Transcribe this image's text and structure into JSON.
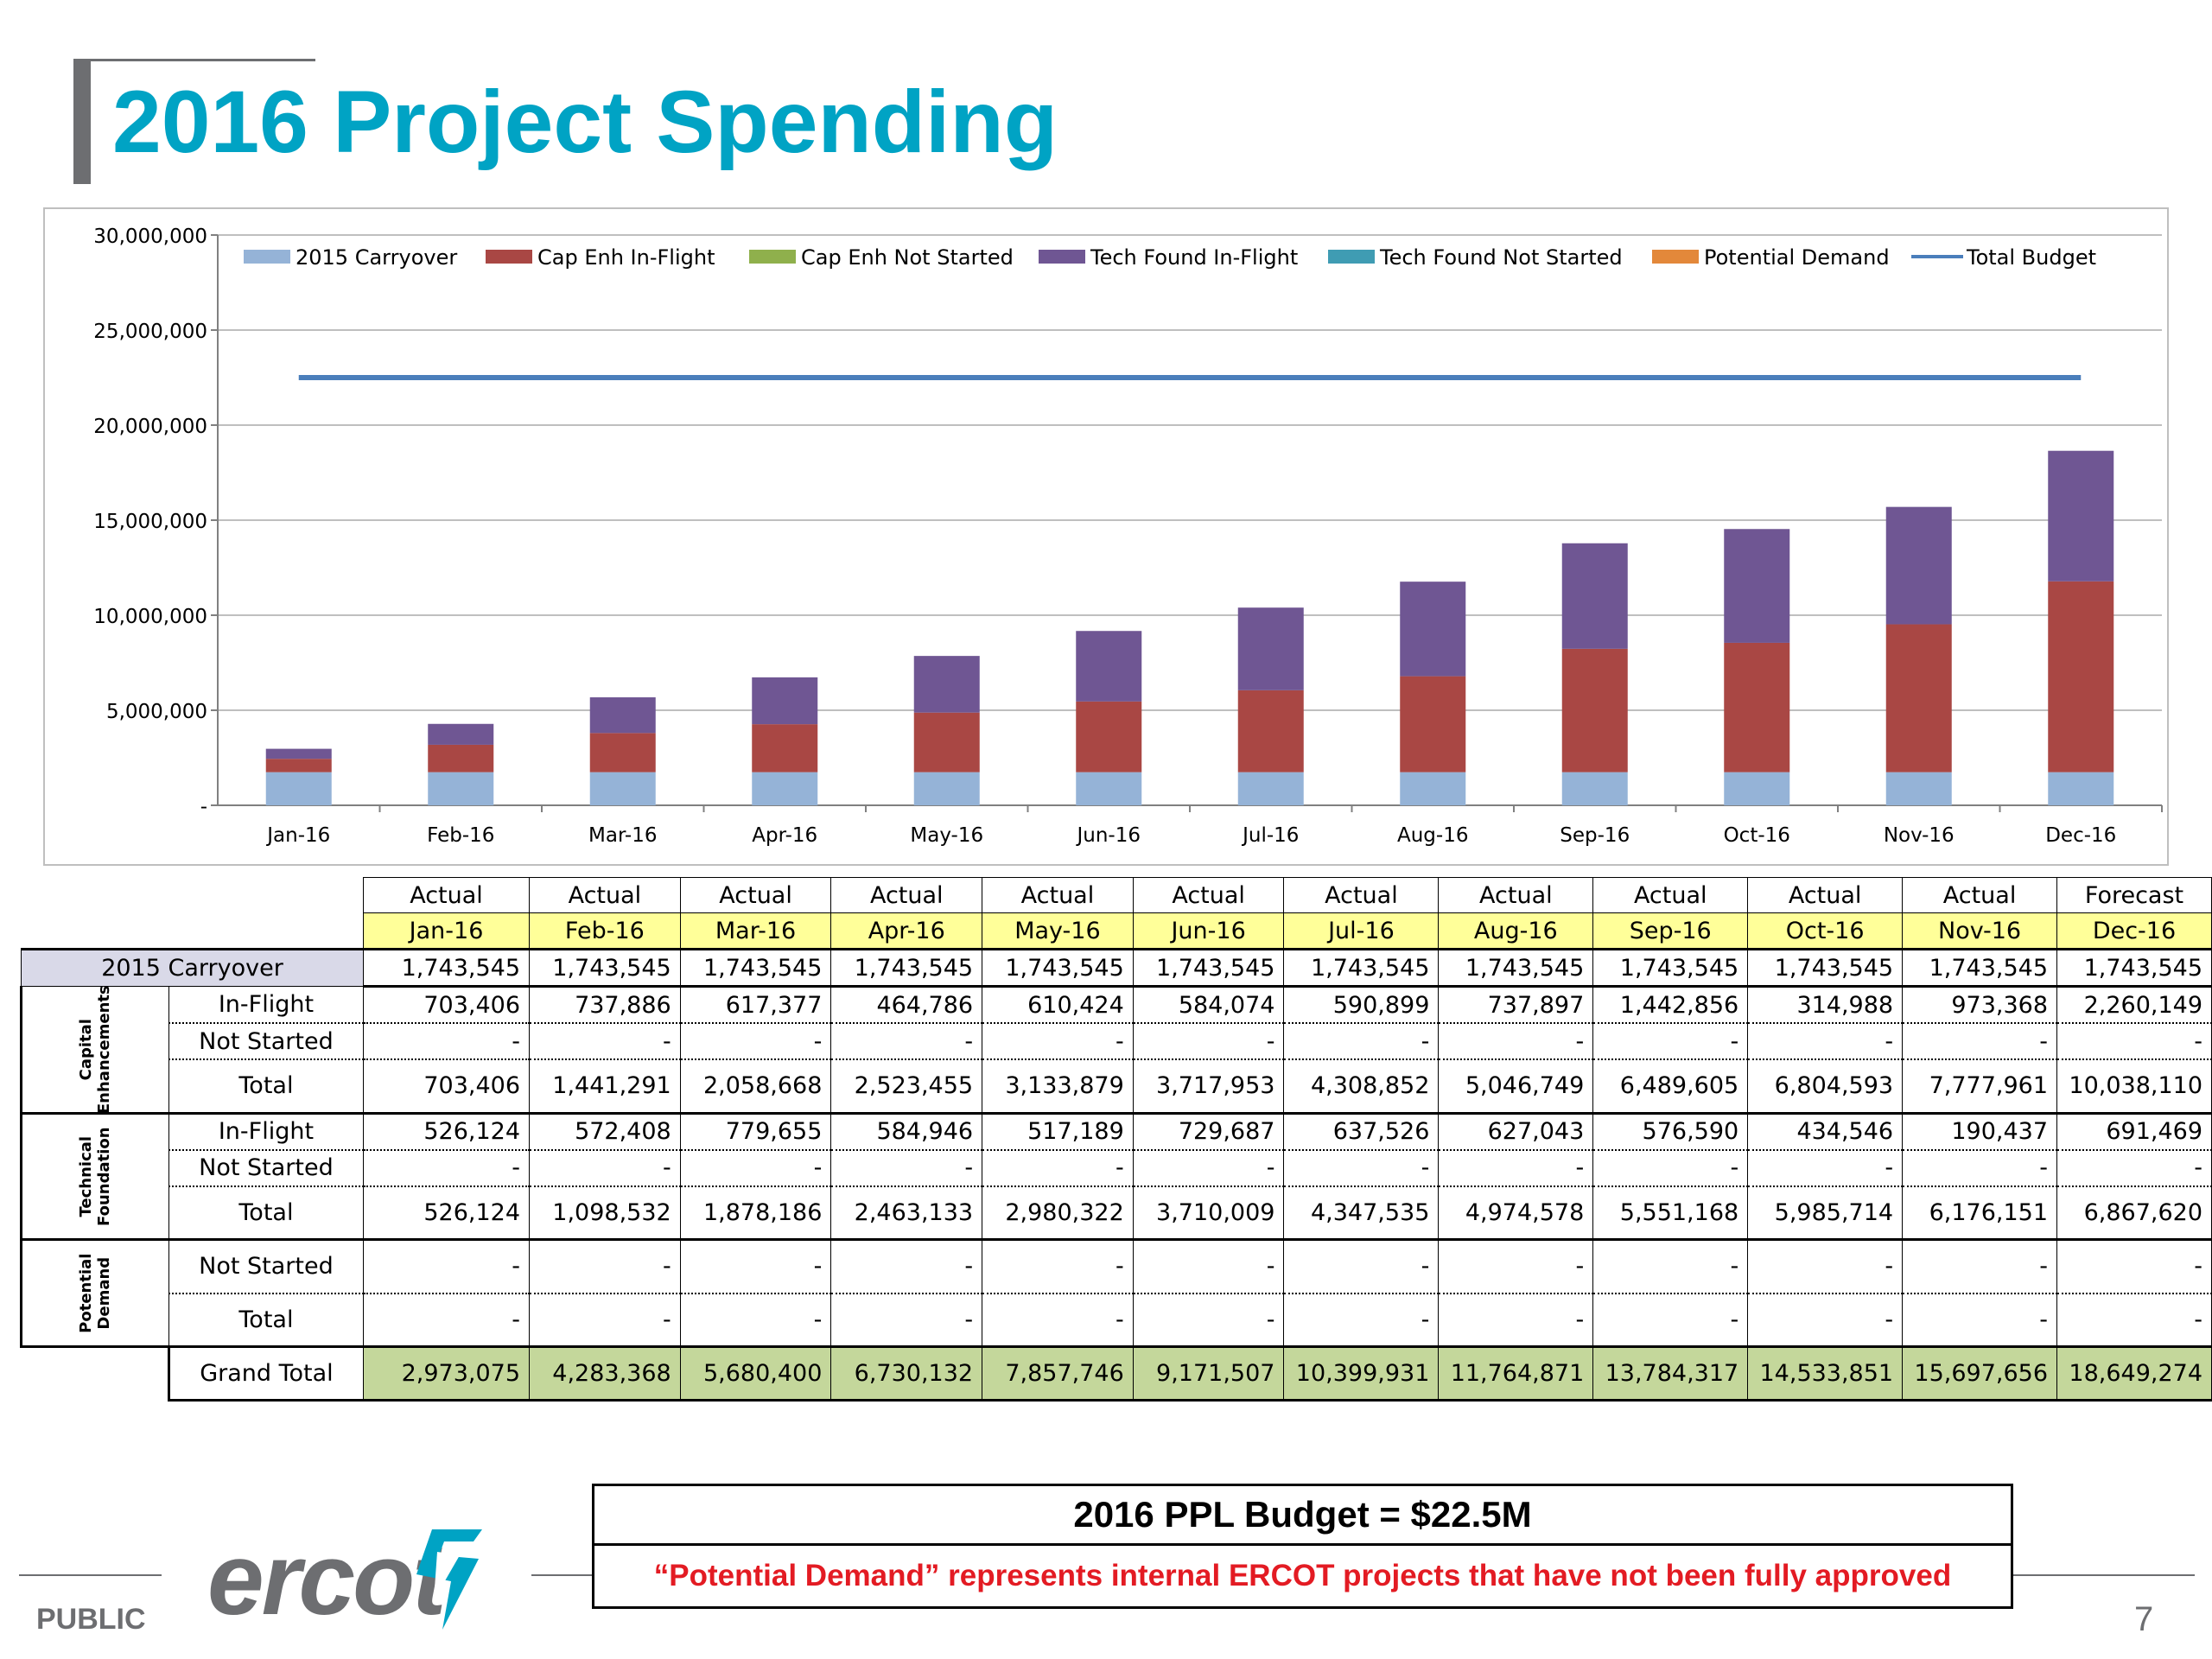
{
  "title": "2016 Project Spending",
  "colors": {
    "title": "#00a3c4",
    "carryover": "#95b3d7",
    "cap_inflight": "#a94744",
    "cap_notstarted": "#8fb04c",
    "tech_inflight": "#6f5693",
    "tech_notstarted": "#3f9cb3",
    "potential": "#e3883a",
    "budget": "#4a7ebb",
    "month_row": "#ffff99",
    "grand_total": "#c4d79b",
    "note": "#e31b23"
  },
  "chart_data": {
    "type": "bar",
    "stacked": true,
    "categories": [
      "Jan-16",
      "Feb-16",
      "Mar-16",
      "Apr-16",
      "May-16",
      "Jun-16",
      "Jul-16",
      "Aug-16",
      "Sep-16",
      "Oct-16",
      "Nov-16",
      "Dec-16"
    ],
    "series": [
      {
        "name": "2015 Carryover",
        "values": [
          1743545,
          1743545,
          1743545,
          1743545,
          1743545,
          1743545,
          1743545,
          1743545,
          1743545,
          1743545,
          1743545,
          1743545
        ]
      },
      {
        "name": "Cap Enh In-Flight",
        "values": [
          703406,
          1441291,
          2058668,
          2523455,
          3133879,
          3717953,
          4308852,
          5046749,
          6489605,
          6804593,
          7777961,
          10038110
        ]
      },
      {
        "name": "Cap Enh Not Started",
        "values": [
          0,
          0,
          0,
          0,
          0,
          0,
          0,
          0,
          0,
          0,
          0,
          0
        ]
      },
      {
        "name": "Tech Found In-Flight",
        "values": [
          526124,
          1098532,
          1878186,
          2463133,
          2980322,
          3710009,
          4347535,
          4974578,
          5551168,
          5985714,
          6176151,
          6867620
        ]
      },
      {
        "name": "Tech Found Not Started",
        "values": [
          0,
          0,
          0,
          0,
          0,
          0,
          0,
          0,
          0,
          0,
          0,
          0
        ]
      },
      {
        "name": "Potential Demand",
        "values": [
          0,
          0,
          0,
          0,
          0,
          0,
          0,
          0,
          0,
          0,
          0,
          0
        ]
      }
    ],
    "line_series": {
      "name": "Total Budget",
      "values": [
        22500000,
        22500000,
        22500000,
        22500000,
        22500000,
        22500000,
        22500000,
        22500000,
        22500000,
        22500000,
        22500000,
        22500000
      ]
    },
    "ylim": [
      0,
      30000000
    ],
    "yticks": [
      "-",
      "5,000,000",
      "10,000,000",
      "15,000,000",
      "20,000,000",
      "25,000,000",
      "30,000,000"
    ],
    "legend_position": "top",
    "grid": true
  },
  "table": {
    "status_row": [
      "Actual",
      "Actual",
      "Actual",
      "Actual",
      "Actual",
      "Actual",
      "Actual",
      "Actual",
      "Actual",
      "Actual",
      "Actual",
      "Forecast"
    ],
    "month_row": [
      "Jan-16",
      "Feb-16",
      "Mar-16",
      "Apr-16",
      "May-16",
      "Jun-16",
      "Jul-16",
      "Aug-16",
      "Sep-16",
      "Oct-16",
      "Nov-16",
      "Dec-16"
    ],
    "carryover": {
      "label": "2015 Carryover",
      "values": [
        "1,743,545",
        "1,743,545",
        "1,743,545",
        "1,743,545",
        "1,743,545",
        "1,743,545",
        "1,743,545",
        "1,743,545",
        "1,743,545",
        "1,743,545",
        "1,743,545",
        "1,743,545"
      ]
    },
    "groups": [
      {
        "label": "Capital Enhancements",
        "label_lines": [
          "Capital",
          "Enhancements"
        ],
        "rows": [
          {
            "label": "In-Flight",
            "values": [
              "703,406",
              "737,886",
              "617,377",
              "464,786",
              "610,424",
              "584,074",
              "590,899",
              "737,897",
              "1,442,856",
              "314,988",
              "973,368",
              "2,260,149"
            ]
          },
          {
            "label": "Not Started",
            "values": [
              "-",
              "-",
              "-",
              "-",
              "-",
              "-",
              "-",
              "-",
              "-",
              "-",
              "-",
              "-"
            ]
          },
          {
            "label": "Total",
            "values": [
              "703,406",
              "1,441,291",
              "2,058,668",
              "2,523,455",
              "3,133,879",
              "3,717,953",
              "4,308,852",
              "5,046,749",
              "6,489,605",
              "6,804,593",
              "7,777,961",
              "10,038,110"
            ]
          }
        ]
      },
      {
        "label": "Technical Foundation",
        "label_lines": [
          "Technical",
          "Foundation"
        ],
        "rows": [
          {
            "label": "In-Flight",
            "values": [
              "526,124",
              "572,408",
              "779,655",
              "584,946",
              "517,189",
              "729,687",
              "637,526",
              "627,043",
              "576,590",
              "434,546",
              "190,437",
              "691,469"
            ]
          },
          {
            "label": "Not Started",
            "values": [
              "-",
              "-",
              "-",
              "-",
              "-",
              "-",
              "-",
              "-",
              "-",
              "-",
              "-",
              "-"
            ]
          },
          {
            "label": "Total",
            "values": [
              "526,124",
              "1,098,532",
              "1,878,186",
              "2,463,133",
              "2,980,322",
              "3,710,009",
              "4,347,535",
              "4,974,578",
              "5,551,168",
              "5,985,714",
              "6,176,151",
              "6,867,620"
            ]
          }
        ]
      },
      {
        "label": "Potential Demand",
        "label_lines": [
          "Potential",
          "Demand"
        ],
        "rows": [
          {
            "label": "Not Started",
            "values": [
              "-",
              "-",
              "-",
              "-",
              "-",
              "-",
              "-",
              "-",
              "-",
              "-",
              "-",
              "-"
            ]
          },
          {
            "label": "Total",
            "values": [
              "-",
              "-",
              "-",
              "-",
              "-",
              "-",
              "-",
              "-",
              "-",
              "-",
              "-",
              "-"
            ]
          }
        ]
      }
    ],
    "grand_total": {
      "label": "Grand Total",
      "values": [
        "2,973,075",
        "4,283,368",
        "5,680,400",
        "6,730,132",
        "7,857,746",
        "9,171,507",
        "10,399,931",
        "11,764,871",
        "13,784,317",
        "14,533,851",
        "15,697,656",
        "18,649,274"
      ]
    }
  },
  "budget_box": {
    "headline": "2016 PPL Budget  =  $22.5M",
    "note": "“Potential Demand” represents internal ERCOT projects that have not been fully approved"
  },
  "footer": {
    "logo_text": "ercot",
    "logo_icon": "ercot-bolt-icon",
    "classification": "PUBLIC",
    "page_number": "7"
  }
}
